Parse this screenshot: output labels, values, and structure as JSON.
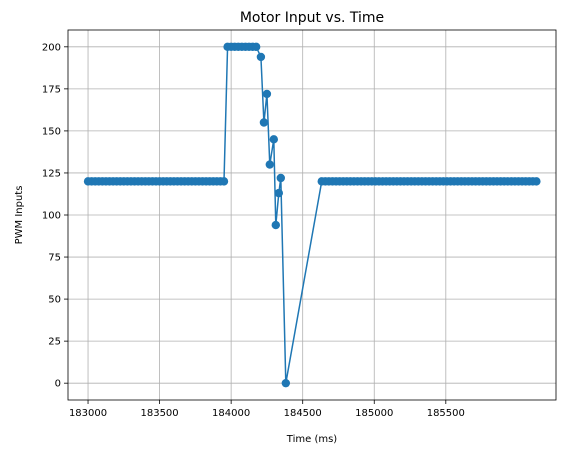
{
  "chart_data": {
    "type": "line",
    "title": "Motor Input vs. Time",
    "x_label": "Time (ms)",
    "y_label": "PWM Inputs",
    "series": [
      {
        "color": "#1f77b4",
        "x": [
          183000,
          183025,
          183050,
          183075,
          183100,
          183125,
          183150,
          183175,
          183200,
          183225,
          183250,
          183275,
          183300,
          183325,
          183350,
          183375,
          183400,
          183425,
          183450,
          183475,
          183500,
          183525,
          183550,
          183575,
          183600,
          183625,
          183650,
          183675,
          183700,
          183725,
          183750,
          183775,
          183800,
          183825,
          183850,
          183875,
          183900,
          183925,
          183950,
          183975,
          184000,
          184025,
          184050,
          184075,
          184100,
          184125,
          184150,
          184175,
          184208,
          184229,
          184250,
          184270,
          184298,
          184312,
          184333,
          184347,
          184382,
          184633,
          184658,
          184683,
          184708,
          184733,
          184758,
          184783,
          184808,
          184833,
          184858,
          184883,
          184908,
          184933,
          184958,
          184983,
          185008,
          185033,
          185058,
          185083,
          185108,
          185133,
          185158,
          185183,
          185208,
          185233,
          185258,
          185283,
          185308,
          185333,
          185358,
          185383,
          185408,
          185433,
          185458,
          185483,
          185508,
          185533,
          185558,
          185583,
          185608,
          185633,
          185658,
          185683,
          185708,
          185733,
          185758,
          185783,
          185808,
          185833,
          185858,
          185883,
          185908,
          185933,
          185958,
          185983,
          186008,
          186033,
          186058,
          186083,
          186108,
          186133
        ],
        "values": [
          120,
          120,
          120,
          120,
          120,
          120,
          120,
          120,
          120,
          120,
          120,
          120,
          120,
          120,
          120,
          120,
          120,
          120,
          120,
          120,
          120,
          120,
          120,
          120,
          120,
          120,
          120,
          120,
          120,
          120,
          120,
          120,
          120,
          120,
          120,
          120,
          120,
          120,
          120,
          200,
          200,
          200,
          200,
          200,
          200,
          200,
          200,
          200,
          194,
          155,
          172,
          130,
          145,
          94,
          113,
          122,
          0,
          120,
          120,
          120,
          120,
          120,
          120,
          120,
          120,
          120,
          120,
          120,
          120,
          120,
          120,
          120,
          120,
          120,
          120,
          120,
          120,
          120,
          120,
          120,
          120,
          120,
          120,
          120,
          120,
          120,
          120,
          120,
          120,
          120,
          120,
          120,
          120,
          120,
          120,
          120,
          120,
          120,
          120,
          120,
          120,
          120,
          120,
          120,
          120,
          120,
          120,
          120,
          120,
          120,
          120,
          120,
          120,
          120,
          120,
          120,
          120,
          120
        ]
      }
    ],
    "xlim": [
      182860,
      186270
    ],
    "xticks": [
      183000,
      183500,
      184000,
      184500,
      185000,
      185500
    ],
    "ylim": [
      -10,
      210
    ],
    "yticks": [
      0,
      25,
      50,
      75,
      100,
      125,
      150,
      175,
      200
    ],
    "grid": true,
    "markers": true
  }
}
